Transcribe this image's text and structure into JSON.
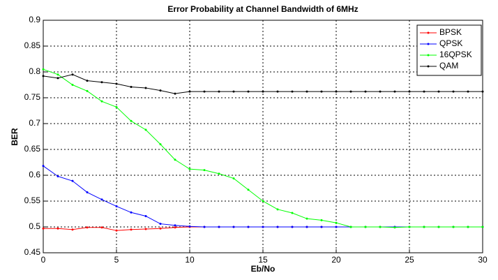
{
  "chart_data": {
    "type": "line",
    "title": "Error Probability at Channel Bandwidth of 6MHz",
    "x_label": "Eb/No",
    "y_label": "BER",
    "x": [
      0,
      1,
      2,
      3,
      4,
      5,
      6,
      7,
      8,
      9,
      10,
      11,
      12,
      13,
      14,
      15,
      16,
      17,
      18,
      19,
      20,
      21,
      22,
      23,
      24,
      25,
      26,
      27,
      28,
      29,
      30
    ],
    "series": [
      {
        "name": "BPSK",
        "color": "#ff0000",
        "values": [
          0.497,
          0.497,
          0.495,
          0.499,
          0.499,
          0.493,
          0.495,
          0.496,
          0.497,
          0.499,
          0.5,
          0.5,
          0.5,
          0.5,
          0.5,
          0.5,
          0.5,
          0.5,
          0.5,
          0.5,
          0.5,
          0.5,
          0.5,
          0.5,
          0.5,
          0.5,
          0.5,
          0.5,
          0.5,
          0.5,
          0.5
        ]
      },
      {
        "name": "QPSK",
        "color": "#0000ff",
        "values": [
          0.618,
          0.598,
          0.589,
          0.567,
          0.553,
          0.54,
          0.528,
          0.521,
          0.506,
          0.503,
          0.501,
          0.5,
          0.5,
          0.5,
          0.5,
          0.5,
          0.5,
          0.5,
          0.5,
          0.5,
          0.5,
          0.5,
          0.5,
          0.5,
          0.5,
          0.5,
          0.5,
          0.5,
          0.5,
          0.5,
          0.5
        ]
      },
      {
        "name": "16QPSK",
        "color": "#00ff00",
        "values": [
          0.805,
          0.795,
          0.775,
          0.763,
          0.743,
          0.732,
          0.705,
          0.688,
          0.66,
          0.63,
          0.612,
          0.61,
          0.603,
          0.594,
          0.572,
          0.55,
          0.534,
          0.527,
          0.516,
          0.513,
          0.508,
          0.5,
          0.5,
          0.5,
          0.499,
          0.5,
          0.5,
          0.5,
          0.5,
          0.5,
          0.5
        ]
      },
      {
        "name": "QAM",
        "color": "#000000",
        "values": [
          0.792,
          0.788,
          0.795,
          0.783,
          0.78,
          0.777,
          0.771,
          0.769,
          0.764,
          0.758,
          0.762,
          0.762,
          0.762,
          0.762,
          0.762,
          0.762,
          0.762,
          0.762,
          0.762,
          0.762,
          0.762,
          0.762,
          0.762,
          0.762,
          0.762,
          0.762,
          0.762,
          0.762,
          0.762,
          0.762,
          0.762
        ]
      }
    ],
    "xlim": [
      0,
      30
    ],
    "ylim": [
      0.45,
      0.9
    ],
    "xticks": [
      0,
      5,
      10,
      15,
      20,
      25,
      30
    ],
    "yticks": [
      0.45,
      0.5,
      0.55,
      0.6,
      0.65,
      0.7,
      0.75,
      0.8,
      0.85,
      0.9
    ],
    "grid": true,
    "legend_position": "upper right"
  }
}
